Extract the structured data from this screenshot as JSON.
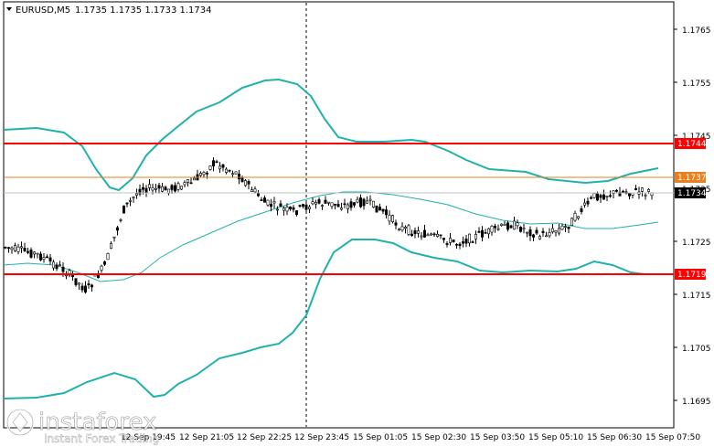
{
  "header": {
    "symbol": "EURUSD,M5",
    "prices": "1.1735 1.1735 1.1733 1.1734",
    "arrow_icon": "triangle-down-icon"
  },
  "price_scale": [
    "1.1765",
    "1.1755",
    "1.1745",
    "1.1735",
    "1.1725",
    "1.1715",
    "1.1705",
    "1.1695"
  ],
  "time_scale": [
    "12 Sep 19:45",
    "12 Sep 21:05",
    "12 Sep 22:25",
    "12 Sep 23:45",
    "15 Sep 01:05",
    "15 Sep 02:30",
    "15 Sep 03:50",
    "15 Sep 05:10",
    "15 Sep 06:30",
    "15 Sep 07:50"
  ],
  "levels": [
    {
      "label": "1.1744",
      "color": "#ff0000"
    },
    {
      "label": "1.1737",
      "color": "#e87f20"
    },
    {
      "label": "1.1734",
      "color": "#000000"
    },
    {
      "label": "1.1719",
      "color": "#ff0000"
    }
  ],
  "watermark": {
    "brand": "instaforex",
    "tagline": "Instant Forex Trading"
  },
  "colors": {
    "bands": "#20b2aa",
    "candle": "#000000",
    "resistance": "#ff0000",
    "bid": "#e87f20",
    "separator": "#000000"
  }
}
